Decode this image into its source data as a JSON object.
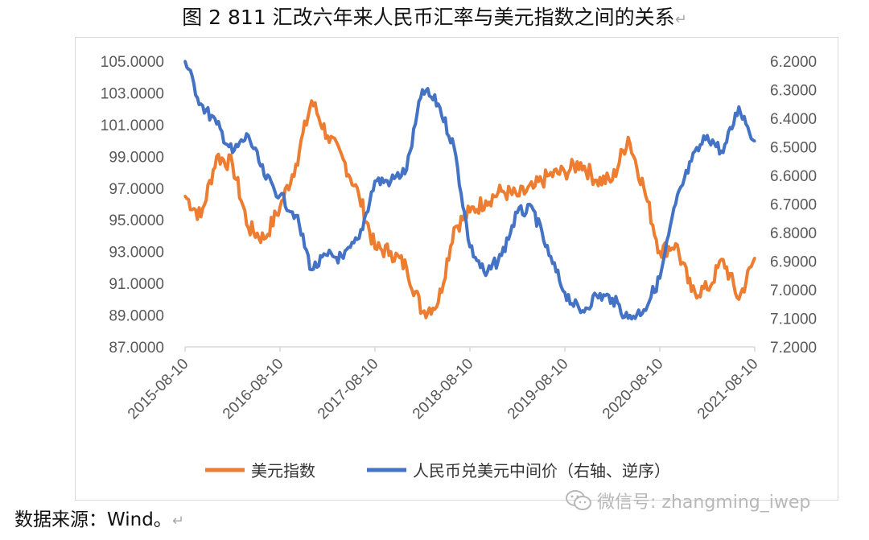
{
  "title": {
    "text": "图 2   811 汇改六年来人民币汇率与美元指数之间的关系",
    "return_mark": "↵"
  },
  "source": {
    "text": "数据来源：Wind。",
    "return_mark": "↵"
  },
  "watermark": {
    "text": "微信号: zhangming_iwep",
    "icon": "wechat-icon"
  },
  "colors": {
    "usd_index": "#ED7D31",
    "cny": "#4472C4",
    "axis": "#595959",
    "axis_line": "#d9d9d9"
  },
  "chart_data": {
    "type": "line",
    "title": "811 汇改六年来人民币汇率与美元指数之间的关系",
    "x": [
      "2015-08-10",
      "2015-10-10",
      "2015-12-10",
      "2016-02-10",
      "2016-04-10",
      "2016-06-10",
      "2016-08-10",
      "2016-10-10",
      "2016-12-10",
      "2017-02-10",
      "2017-04-10",
      "2017-06-10",
      "2017-08-10",
      "2017-10-10",
      "2017-12-10",
      "2018-02-10",
      "2018-04-10",
      "2018-06-10",
      "2018-08-10",
      "2018-10-10",
      "2018-12-10",
      "2019-02-10",
      "2019-04-10",
      "2019-06-10",
      "2019-08-10",
      "2019-10-10",
      "2019-12-10",
      "2020-02-10",
      "2020-04-10",
      "2020-06-10",
      "2020-08-10",
      "2020-10-10",
      "2020-12-10",
      "2021-02-10",
      "2021-04-10",
      "2021-06-10",
      "2021-08-10"
    ],
    "x_tick_labels": [
      "2015-08-10",
      "2016-08-10",
      "2017-08-10",
      "2018-08-10",
      "2019-08-10",
      "2020-08-10",
      "2021-08-10"
    ],
    "series": [
      {
        "name": "美元指数",
        "axis": "left",
        "values": [
          96.5,
          95.2,
          99.0,
          98.5,
          94.5,
          93.8,
          95.8,
          98.5,
          102.5,
          100.3,
          98.8,
          96.5,
          93.2,
          93.0,
          92.0,
          89.2,
          89.8,
          94.5,
          95.5,
          96.2,
          96.8,
          96.5,
          97.0,
          97.8,
          98.0,
          98.6,
          97.5,
          97.5,
          100.2,
          97.0,
          93.0,
          93.5,
          90.5,
          90.6,
          92.5,
          90.0,
          92.6
        ]
      },
      {
        "name": "人民币兑美元中间价（右轴、逆序）",
        "axis": "right",
        "values": [
          6.2,
          6.35,
          6.42,
          6.52,
          6.46,
          6.6,
          6.67,
          6.74,
          6.93,
          6.88,
          6.89,
          6.82,
          6.62,
          6.62,
          6.58,
          6.3,
          6.35,
          6.5,
          6.85,
          6.95,
          6.88,
          6.73,
          6.72,
          6.88,
          7.01,
          7.08,
          7.02,
          7.03,
          7.1,
          7.07,
          6.96,
          6.7,
          6.55,
          6.46,
          6.52,
          6.36,
          6.48
        ]
      }
    ],
    "left_axis": {
      "ylim": [
        87.0,
        105.0
      ],
      "ticks": [
        "105.0000",
        "103.0000",
        "101.0000",
        "99.0000",
        "97.0000",
        "95.0000",
        "93.0000",
        "91.0000",
        "89.0000",
        "87.0000"
      ]
    },
    "right_axis": {
      "ylim": [
        6.2,
        7.2
      ],
      "inverted": true,
      "ticks": [
        "6.2000",
        "6.3000",
        "6.4000",
        "6.5000",
        "6.6000",
        "6.7000",
        "6.8000",
        "6.9000",
        "7.0000",
        "7.1000",
        "7.2000"
      ]
    },
    "grid": false,
    "legend_position": "bottom"
  }
}
